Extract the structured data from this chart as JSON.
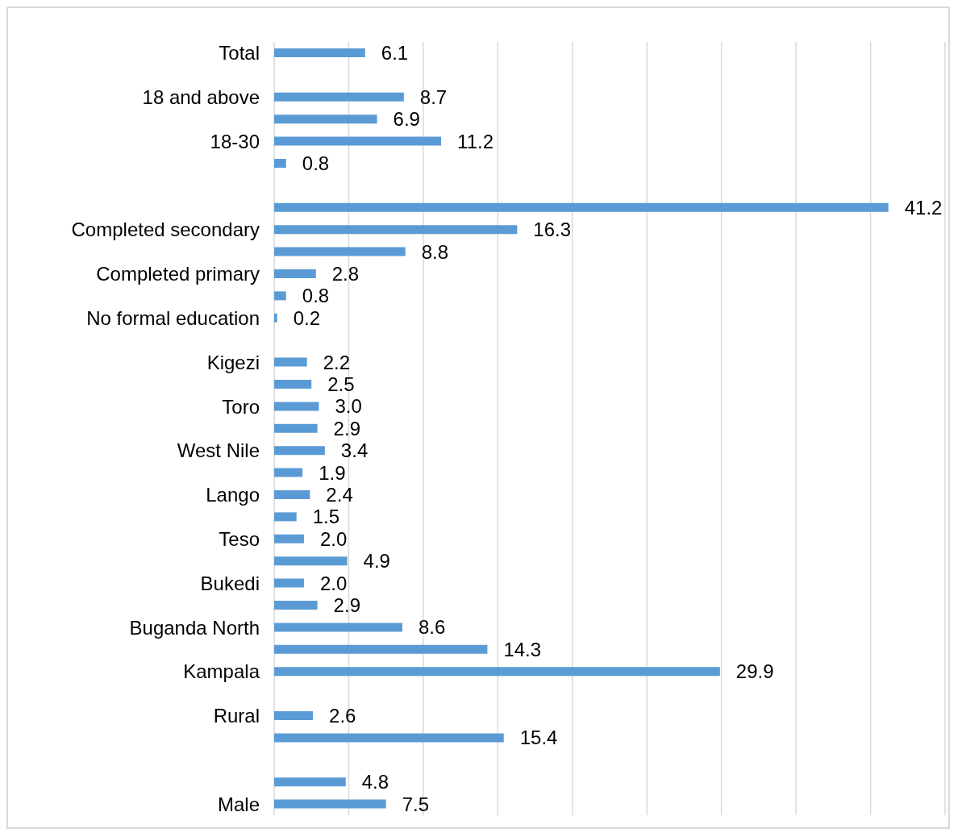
{
  "chart_data": {
    "type": "bar",
    "orientation": "horizontal",
    "categories": [
      "Total",
      null,
      "18 and above",
      null,
      "18-30",
      null,
      null,
      null,
      "Completed secondary",
      null,
      "Completed primary",
      null,
      "No formal education",
      null,
      "Kigezi",
      null,
      "Toro",
      null,
      "West Nile",
      null,
      "Lango",
      null,
      "Teso",
      null,
      "Bukedi",
      null,
      "Buganda North",
      null,
      "Kampala",
      null,
      "Rural",
      null,
      null,
      null,
      "Male"
    ],
    "values": [
      6.1,
      null,
      8.7,
      6.9,
      11.2,
      0.8,
      null,
      41.2,
      16.3,
      8.8,
      2.8,
      0.8,
      0.2,
      null,
      2.2,
      2.5,
      3.0,
      2.9,
      3.4,
      1.9,
      2.4,
      1.5,
      2.0,
      4.9,
      2.0,
      2.9,
      8.6,
      14.3,
      29.9,
      null,
      2.6,
      15.4,
      null,
      4.8,
      7.5
    ],
    "value_labels": [
      "6.1",
      null,
      "8.7",
      "6.9",
      "11.2",
      "0.8",
      null,
      "41.2",
      "16.3",
      "8.8",
      "2.8",
      "0.8",
      "0.2",
      null,
      "2.2",
      "2.5",
      "3.0",
      "2.9",
      "3.4",
      "1.9",
      "2.4",
      "1.5",
      "2.0",
      "4.9",
      "2.0",
      "2.9",
      "8.6",
      "14.3",
      "29.9",
      null,
      "2.6",
      "15.4",
      null,
      "4.8",
      "7.5"
    ],
    "color": "#5b9bd5",
    "grid": "x",
    "legend": false,
    "tick_labels": "y"
  }
}
